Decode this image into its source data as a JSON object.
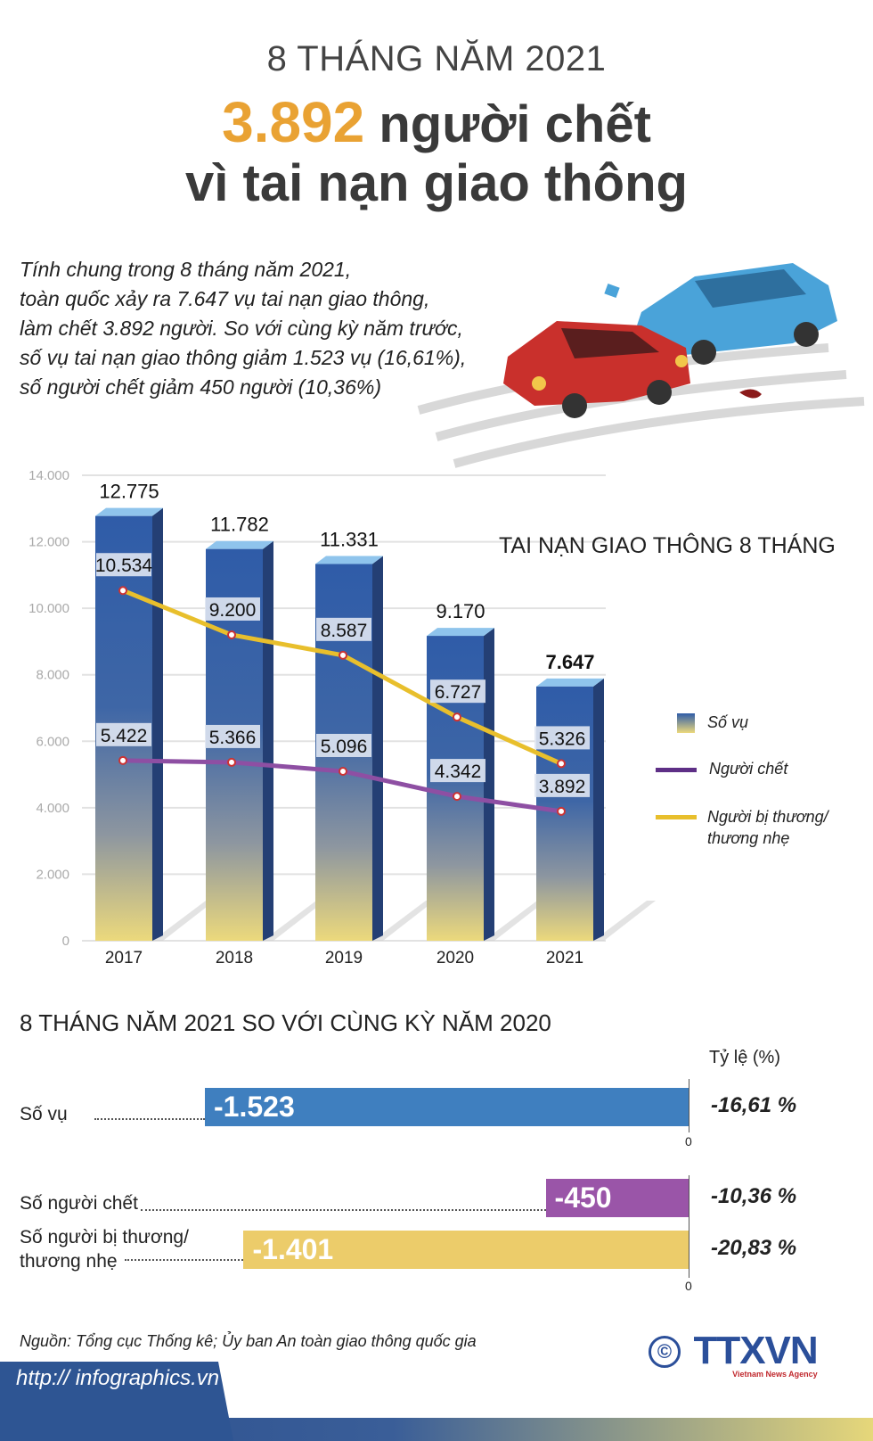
{
  "header": {
    "kicker": "8 THÁNG NĂM 2021",
    "headline_number": "3.892",
    "headline_rest": " người chết",
    "headline_line2": "vì tai nạn giao thông"
  },
  "intro": [
    "Tính chung trong 8 tháng năm 2021,",
    "toàn quốc xảy ra 7.647 vụ tai nạn giao thông,",
    "làm chết 3.892 người. So với cùng kỳ năm trước,",
    "số vụ tai nạn giao thông giảm 1.523 vụ (16,61%),",
    "số người chết giảm 450 người (10,36%)"
  ],
  "chart_data": [
    {
      "type": "bar+line",
      "title": "TAI NẠN GIAO THÔNG 8 THÁNG",
      "categories": [
        "2017",
        "2018",
        "2019",
        "2020",
        "2021"
      ],
      "ylim": [
        0,
        14000
      ],
      "yticks": [
        "0",
        "2.000",
        "4.000",
        "6.000",
        "8.000",
        "10.000",
        "12.000",
        "14.000"
      ],
      "grid": true,
      "legend_position": "right",
      "series": [
        {
          "name": "Số vụ",
          "kind": "bar",
          "color": "#2f5ca8",
          "values": [
            12775,
            11782,
            11331,
            9170,
            7647
          ],
          "labels": [
            "12.775",
            "11.782",
            "11.331",
            "9.170",
            "7.647"
          ]
        },
        {
          "name": "Người chết",
          "kind": "line",
          "color": "#8e4fa3",
          "values": [
            5422,
            5366,
            5096,
            4342,
            3892
          ],
          "labels": [
            "5.422",
            "5.366",
            "5.096",
            "4.342",
            "3.892"
          ]
        },
        {
          "name": "Người bị thương/ thương nhẹ",
          "kind": "line",
          "color": "#e8bf2c",
          "values": [
            10534,
            9200,
            8587,
            6727,
            5326
          ],
          "labels": [
            "10.534",
            "9.200",
            "8.587",
            "6.727",
            "5.326"
          ]
        }
      ]
    },
    {
      "type": "bar",
      "title": "8 THÁNG NĂM 2021 SO VỚI CÙNG KỲ NĂM 2020",
      "ratio_header": "Tỷ lệ (%)",
      "zero_label": "0",
      "categories": [
        "Số vụ",
        "Số người chết",
        "Số người bị thương/ thương nhẹ"
      ],
      "values": [
        -1523,
        -450,
        -1401
      ],
      "labels": [
        "-1.523",
        "-450",
        "-1.401"
      ],
      "ratios": [
        "-16,61 %",
        "-10,36 %",
        "-20,83 %"
      ],
      "colors": [
        "#3f7fbf",
        "#9a55a8",
        "#eccc6a"
      ]
    }
  ],
  "footer": {
    "source": "Nguồn: Tổng cục Thống kê; Ủy ban An toàn giao thông quốc gia",
    "url": "http:// infographics.vn",
    "logo_text": "TTXVN",
    "logo_sub": "Vietnam News Agency",
    "copyright": "©"
  }
}
